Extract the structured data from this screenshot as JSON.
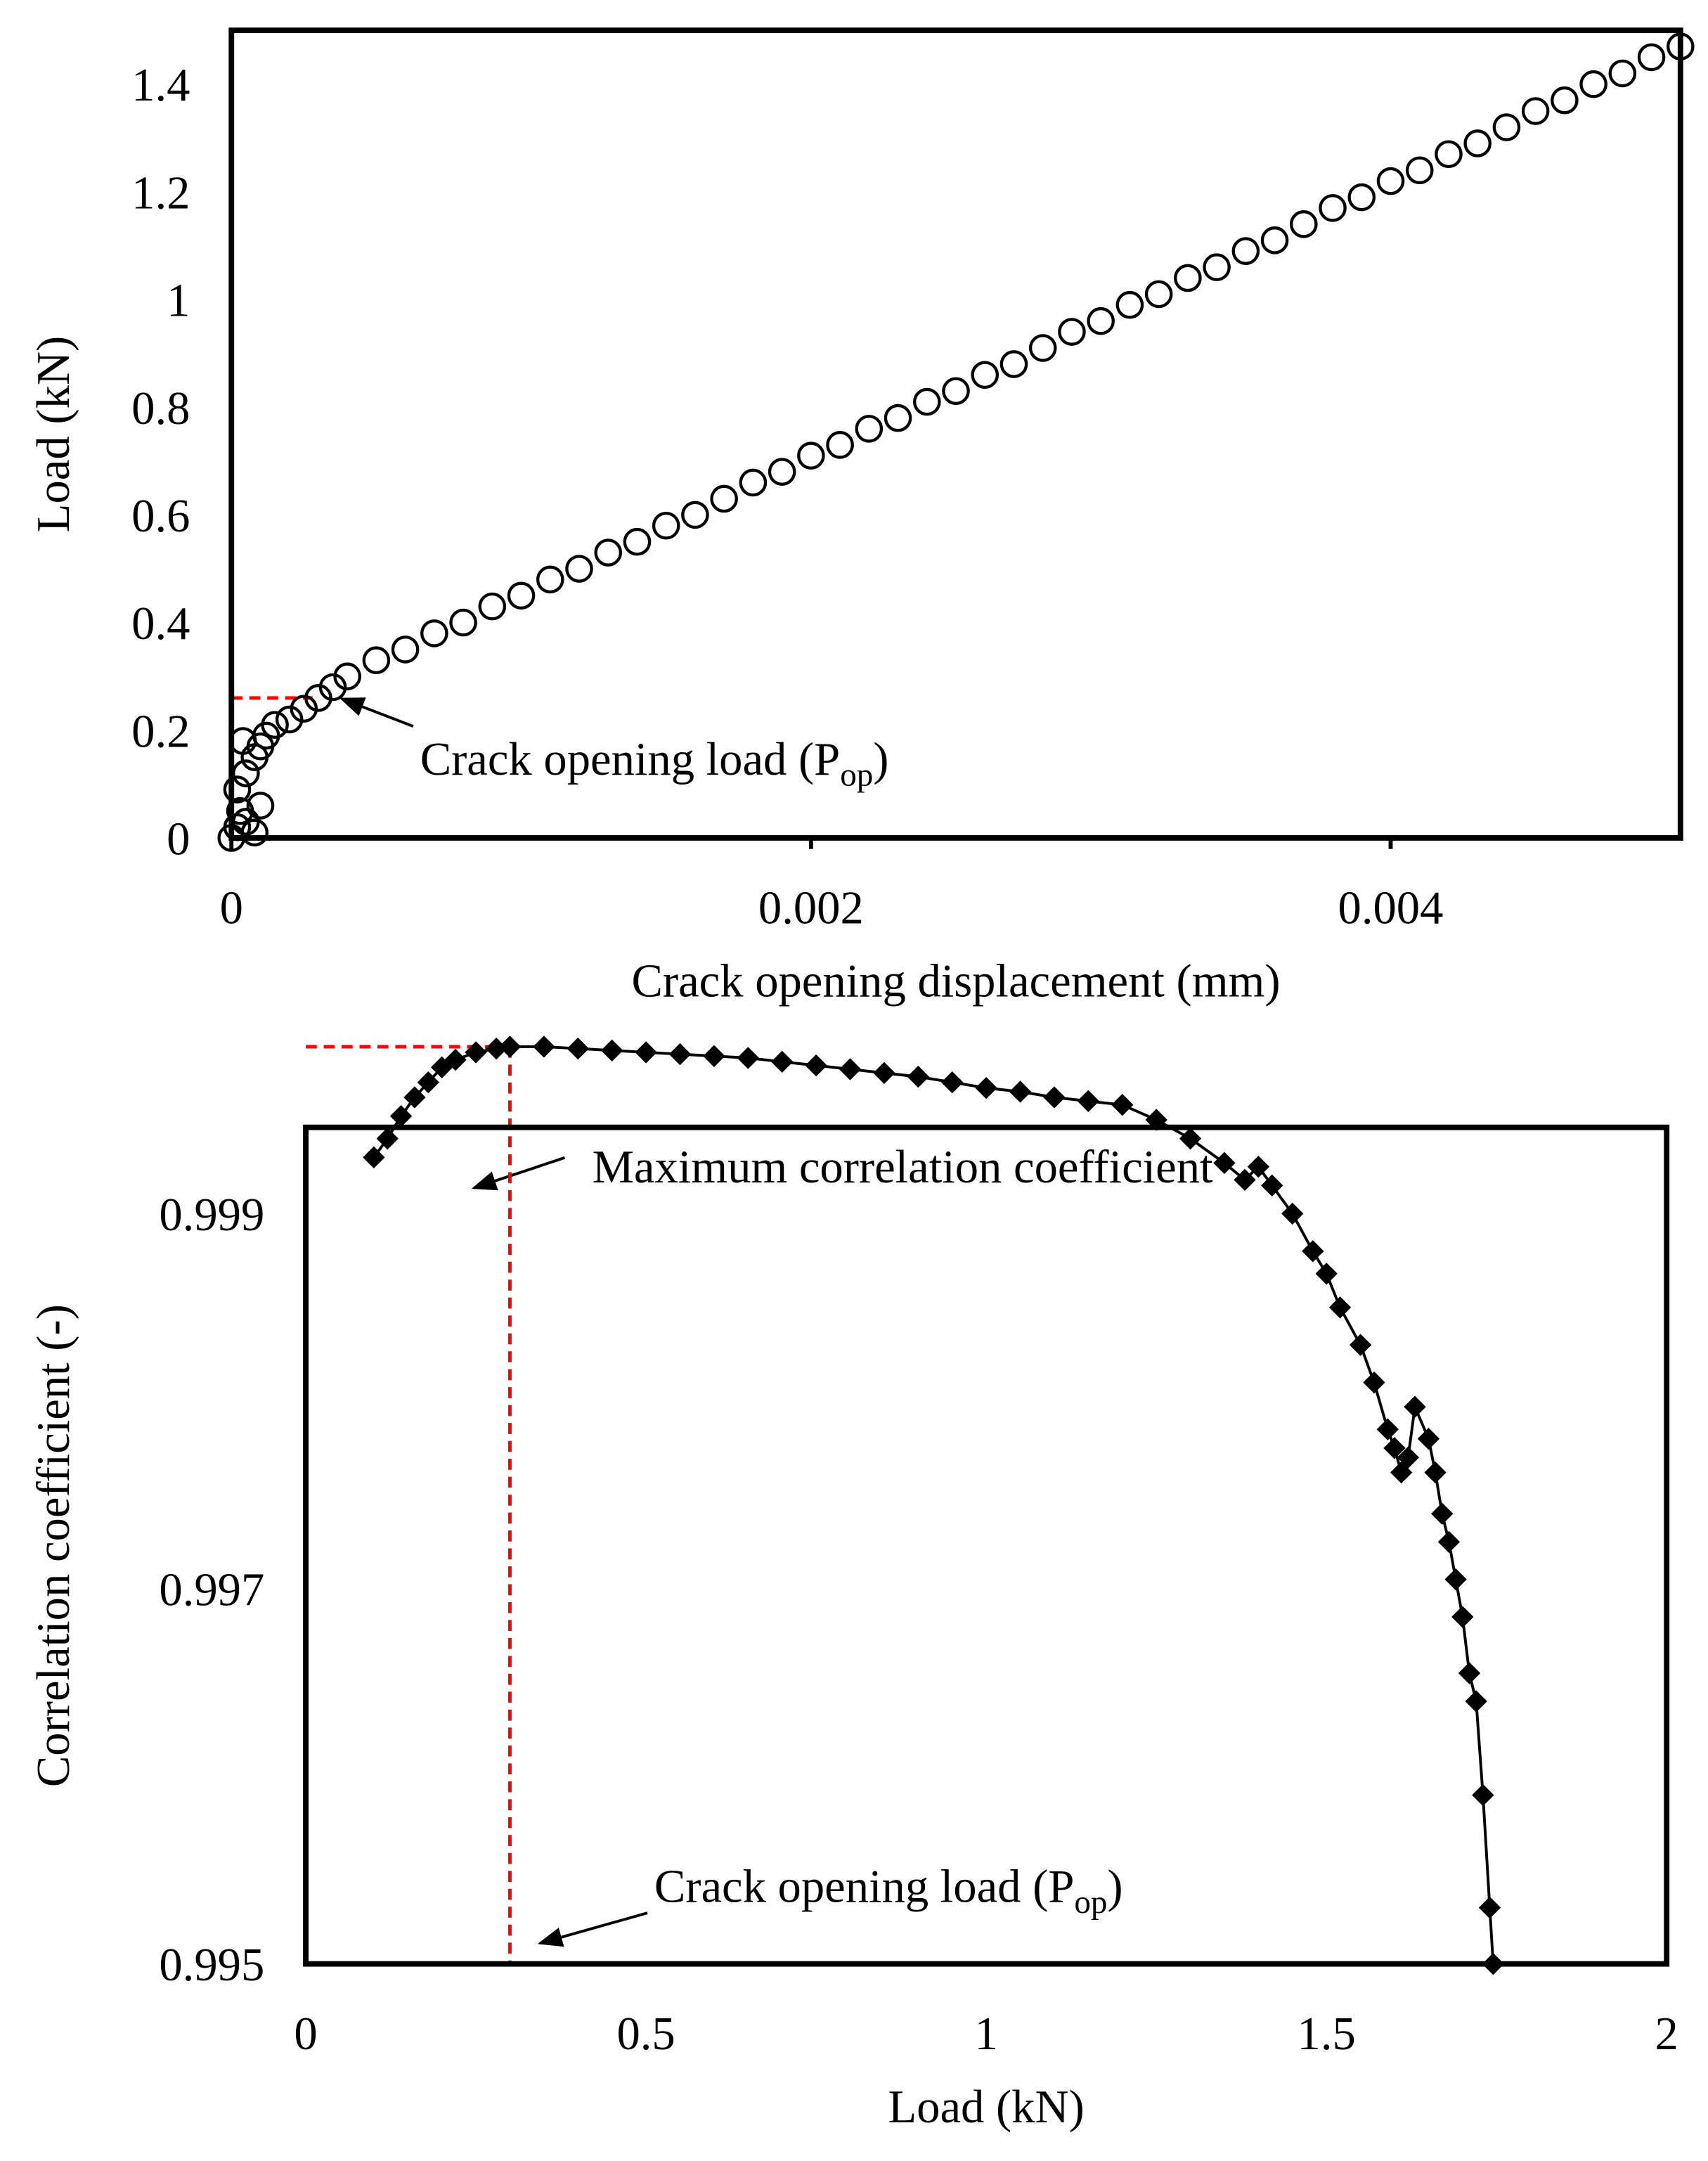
{
  "chart_data": [
    {
      "type": "scatter",
      "x_label": "Crack opening displacement (mm)",
      "y_label": "Load (kN)",
      "xlim": [
        0,
        0.005
      ],
      "xticks": [
        0,
        0.002,
        0.004
      ],
      "ylim": [
        0,
        1.5
      ],
      "yticks": [
        0,
        0.2,
        0.4,
        0.6,
        0.8,
        1,
        1.2,
        1.4
      ],
      "grid": false,
      "color": "#000000",
      "x": [
        0,
        2e-05,
        3e-05,
        5e-05,
        8e-05,
        0.0001,
        2e-05,
        5e-05,
        8e-05,
        4e-05,
        0.0001,
        0.00012,
        0.00015,
        0.0002,
        0.00025,
        0.0003,
        0.00035,
        0.0004,
        0.0005,
        0.0006,
        0.0007,
        0.0008,
        0.0009,
        0.001,
        0.0011,
        0.0012,
        0.0013,
        0.0014,
        0.0015,
        0.0016,
        0.0017,
        0.0018,
        0.0019,
        0.002,
        0.0021,
        0.0022,
        0.0023,
        0.0024,
        0.0025,
        0.0026,
        0.0027,
        0.0028,
        0.0029,
        0.003,
        0.0031,
        0.0032,
        0.0033,
        0.0034,
        0.0035,
        0.0036,
        0.0037,
        0.0038,
        0.0039,
        0.004,
        0.0041,
        0.0042,
        0.0043,
        0.0044,
        0.0045,
        0.0046,
        0.0047,
        0.0048,
        0.0049,
        0.005
      ],
      "values": [
        0,
        0.02,
        0.05,
        0.03,
        0.01,
        0.06,
        0.09,
        0.12,
        0.15,
        0.18,
        0.17,
        0.19,
        0.21,
        0.22,
        0.24,
        0.26,
        0.28,
        0.3,
        0.33,
        0.35,
        0.38,
        0.4,
        0.43,
        0.45,
        0.48,
        0.5,
        0.53,
        0.55,
        0.58,
        0.6,
        0.63,
        0.66,
        0.68,
        0.71,
        0.73,
        0.76,
        0.78,
        0.81,
        0.83,
        0.86,
        0.88,
        0.91,
        0.94,
        0.96,
        0.99,
        1.01,
        1.04,
        1.06,
        1.09,
        1.11,
        1.14,
        1.17,
        1.19,
        1.22,
        1.24,
        1.27,
        1.29,
        1.32,
        1.35,
        1.37,
        1.4,
        1.42,
        1.45,
        1.47
      ],
      "reference_line": {
        "y": 0.26,
        "x": 0.00028,
        "color": "#ff0000"
      },
      "annotations": [
        {
          "text": "Crack opening load (P",
          "subscript": "op",
          "suffix": ")"
        }
      ]
    },
    {
      "type": "line",
      "x_label": "Load (kN)",
      "y_label": "Correlation coefficient (-)",
      "xlim": [
        0,
        2
      ],
      "xticks": [
        0,
        0.5,
        1,
        1.5,
        2
      ],
      "ylim": [
        0.995,
        0.99946
      ],
      "yticks": [
        0.995,
        0.997,
        0.999
      ],
      "grid": false,
      "color": "#000000",
      "marker": "diamond",
      "x": [
        0.1,
        0.12,
        0.14,
        0.16,
        0.18,
        0.2,
        0.22,
        0.25,
        0.28,
        0.3,
        0.35,
        0.4,
        0.45,
        0.5,
        0.55,
        0.6,
        0.65,
        0.7,
        0.75,
        0.8,
        0.85,
        0.9,
        0.95,
        1,
        1.05,
        1.1,
        1.15,
        1.2,
        1.25,
        1.3,
        1.35,
        1.38,
        1.4,
        1.42,
        1.45,
        1.48,
        1.5,
        1.52,
        1.55,
        1.57,
        1.59,
        1.6,
        1.61,
        1.62,
        1.63,
        1.65,
        1.66,
        1.67,
        1.68,
        1.69,
        1.7,
        1.71,
        1.72,
        1.73,
        1.74,
        1.745
      ],
      "values": [
        0.9993,
        0.9994,
        0.99952,
        0.99962,
        0.9997,
        0.99978,
        0.99982,
        0.99986,
        0.99988,
        0.99989,
        0.99989,
        0.99988,
        0.99987,
        0.99986,
        0.99985,
        0.99984,
        0.99983,
        0.99981,
        0.99979,
        0.99977,
        0.99975,
        0.99973,
        0.9997,
        0.99967,
        0.99965,
        0.99962,
        0.9996,
        0.99958,
        0.9995,
        0.9994,
        0.99927,
        0.99918,
        0.99925,
        0.99915,
        0.999,
        0.9988,
        0.99868,
        0.9985,
        0.9983,
        0.9981,
        0.99785,
        0.99775,
        0.99762,
        0.9977,
        0.99797,
        0.9978,
        0.99762,
        0.9974,
        0.99725,
        0.99705,
        0.99685,
        0.99655,
        0.9964,
        0.9959,
        0.9953,
        0.995
      ],
      "reference_lines": {
        "x": 0.3,
        "y": 0.99989,
        "color": "#ff0000"
      },
      "annotations": [
        {
          "text": "Maximum correlation coefficient"
        },
        {
          "text": "Crack opening load (P",
          "subscript": "op",
          "suffix": ")"
        }
      ]
    }
  ]
}
